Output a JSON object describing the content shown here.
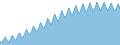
{
  "chart_data": {
    "type": "area",
    "color": "#5ba8d4",
    "x": [
      0,
      1,
      2,
      3,
      4,
      5,
      6,
      7,
      8,
      9,
      10,
      11,
      12,
      13,
      14,
      15,
      16,
      17,
      18,
      19,
      20,
      21,
      22,
      23,
      24,
      25,
      26,
      27,
      28,
      29,
      30,
      31,
      32,
      33,
      34,
      35,
      36,
      37,
      38,
      39,
      40,
      41,
      42,
      43,
      44,
      45,
      46,
      47,
      48,
      49,
      50,
      51,
      52,
      53,
      54,
      55,
      56,
      57,
      58,
      59,
      60,
      61,
      62,
      63,
      64,
      65,
      66,
      67,
      68
    ],
    "values": [
      28,
      26,
      30,
      33,
      29,
      27,
      31,
      35,
      31,
      29,
      34,
      38,
      34,
      32,
      37,
      42,
      38,
      35,
      40,
      46,
      42,
      39,
      44,
      50,
      46,
      43,
      48,
      55,
      51,
      47,
      53,
      60,
      55,
      51,
      57,
      64,
      59,
      55,
      61,
      67,
      62,
      58,
      64,
      70,
      64,
      60,
      66,
      72,
      66,
      62,
      67,
      73,
      67,
      63,
      68,
      74,
      68,
      64,
      69,
      74,
      68,
      64,
      68,
      73,
      67,
      63,
      67,
      72,
      66
    ],
    "xlim": [
      0,
      68
    ],
    "ylim": [
      23.6,
      76.4
    ],
    "grid": false,
    "tick_labels": false
  }
}
